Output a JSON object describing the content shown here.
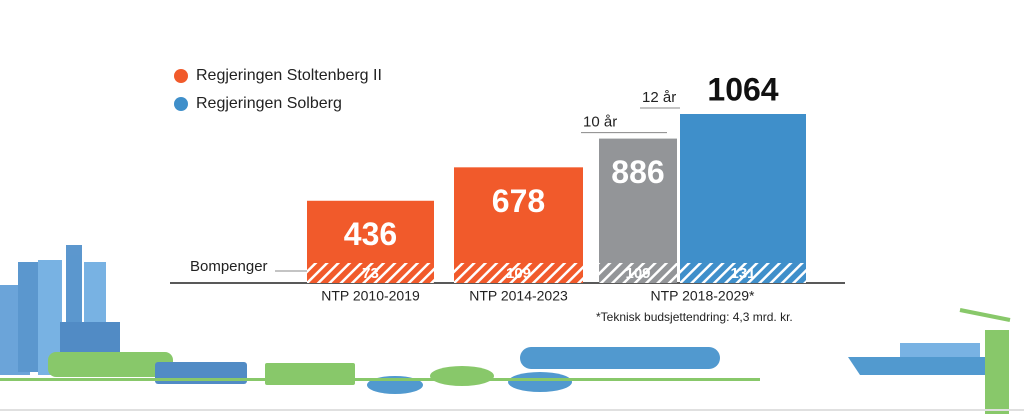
{
  "chart_data": {
    "type": "bar",
    "categories": [
      "NTP 2010-2019",
      "NTP 2014-2023",
      null,
      "NTP 2018-2029*"
    ],
    "values": [
      436,
      678,
      886,
      1064
    ],
    "colors": [
      "#f15a2b",
      "#f15a2b",
      "#939598",
      "#3f8fca"
    ],
    "toll_label": "Bompenger",
    "toll_values": [
      73,
      109,
      109,
      131
    ],
    "period_labels": [
      null,
      null,
      "10 år",
      "12 år"
    ],
    "legend": [
      {
        "name": "Regjeringen Stoltenberg II",
        "color": "#f15a2b"
      },
      {
        "name": "Regjeringen Solberg",
        "color": "#3f8fca"
      }
    ],
    "footnote": "*Teknisk budsjettendring: 4,3 mrd. kr."
  }
}
